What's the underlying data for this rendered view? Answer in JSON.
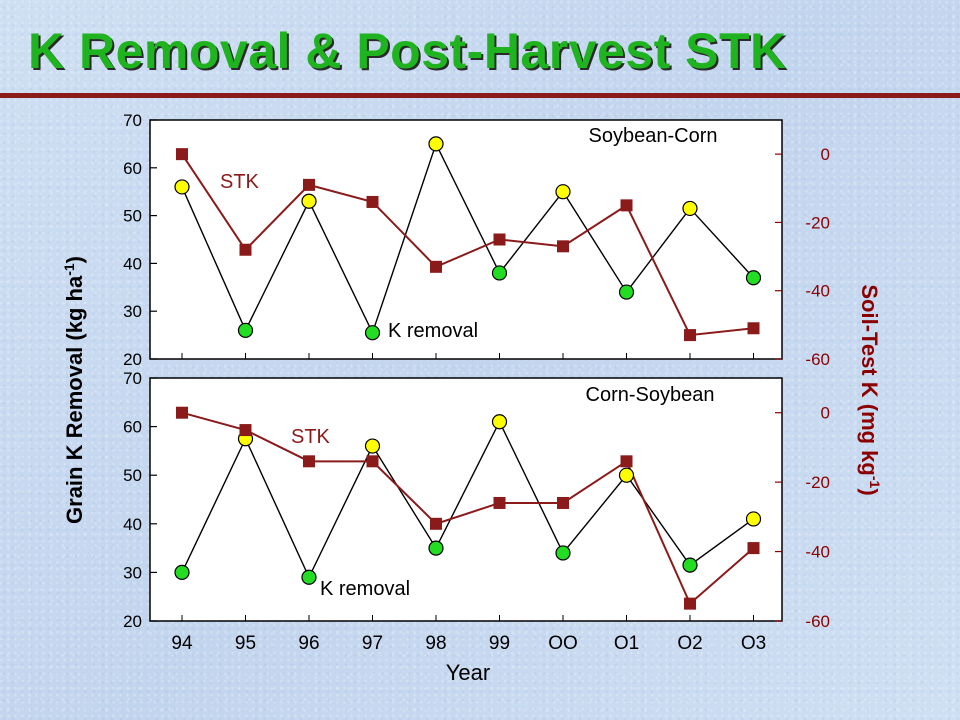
{
  "slide": {
    "title": "K Removal & Post-Harvest STK",
    "title_color": "#1fb41f",
    "rule_color": "#8b1a1a"
  },
  "chart_data": [
    {
      "type": "line",
      "title": "Soybean-Corn",
      "categories": [
        "94",
        "95",
        "96",
        "97",
        "98",
        "99",
        "OO",
        "O1",
        "O2",
        "O3"
      ],
      "series": [
        {
          "name": "K removal",
          "axis": "left",
          "values": [
            56,
            26,
            53,
            25.5,
            65,
            38,
            55,
            34,
            51.5,
            37
          ],
          "point_colors": [
            "#ffff00",
            "#22dd22",
            "#ffff00",
            "#22dd22",
            "#ffff00",
            "#22dd22",
            "#ffff00",
            "#22dd22",
            "#ffff00",
            "#22dd22"
          ],
          "line_color": "#000000"
        },
        {
          "name": "STK",
          "axis": "right",
          "values": [
            0,
            -28,
            -9,
            -14,
            -33,
            -25,
            -27,
            -15,
            -53,
            -51
          ],
          "color": "#8b1a1a"
        }
      ],
      "ylim_left": [
        20,
        70
      ],
      "yticks_left": [
        20,
        30,
        40,
        50,
        60,
        70
      ],
      "ylim_right": [
        -60,
        10
      ],
      "yticks_right": [
        0,
        -20,
        -40,
        -60
      ]
    },
    {
      "type": "line",
      "title": "Corn-Soybean",
      "categories": [
        "94",
        "95",
        "96",
        "97",
        "98",
        "99",
        "OO",
        "O1",
        "O2",
        "O3"
      ],
      "series": [
        {
          "name": "K removal",
          "axis": "left",
          "values": [
            30,
            57.5,
            29,
            56,
            35,
            61,
            34,
            50,
            31.5,
            41
          ],
          "point_colors": [
            "#22dd22",
            "#ffff00",
            "#22dd22",
            "#ffff00",
            "#22dd22",
            "#ffff00",
            "#22dd22",
            "#ffff00",
            "#22dd22",
            "#ffff00"
          ],
          "line_color": "#000000"
        },
        {
          "name": "STK",
          "axis": "right",
          "values": [
            0,
            -5,
            -14,
            -14,
            -32,
            -26,
            -26,
            -14,
            -55,
            -39
          ],
          "color": "#8b1a1a"
        }
      ],
      "ylim_left": [
        20,
        70
      ],
      "yticks_left": [
        20,
        30,
        40,
        50,
        60,
        70
      ],
      "ylim_right": [
        -60,
        10
      ],
      "yticks_right": [
        0,
        -20,
        -40,
        -60
      ]
    }
  ],
  "axes": {
    "ylabel_left": "Grain K Removal (kg ha",
    "ylabel_left_sup": "-1",
    "ylabel_left_end": ")",
    "ylabel_right": "Soil-Test K (mg kg",
    "ylabel_right_sup": "-1",
    "ylabel_right_end": ")",
    "xlabel": "Year",
    "left_color": "#000000",
    "right_color": "#8b0000"
  }
}
